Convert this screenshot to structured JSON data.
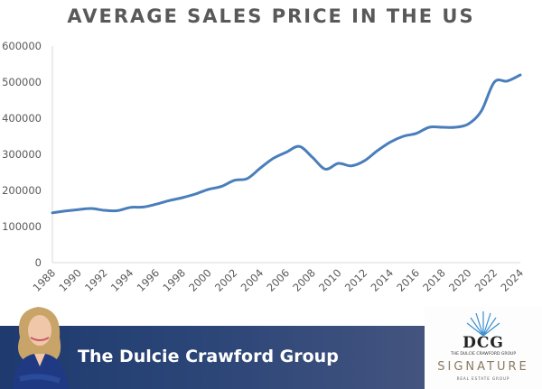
{
  "chart_data": {
    "type": "line",
    "title": "AVERAGE SALES PRICE IN THE US",
    "xlabel": "",
    "ylabel": "",
    "ylim": [
      0,
      600000
    ],
    "yticks": [
      0,
      100000,
      200000,
      300000,
      400000,
      500000,
      600000
    ],
    "ytick_labels": [
      "0",
      "100000",
      "200000",
      "300000",
      "400000",
      "500000",
      "600000"
    ],
    "xlim": [
      1988,
      2024
    ],
    "xtick_labels": [
      "1988",
      "1990",
      "1992",
      "1994",
      "1996",
      "1998",
      "2000",
      "2002",
      "2004",
      "2006",
      "2008",
      "2010",
      "2012",
      "2014",
      "2016",
      "2018",
      "2020",
      "2022",
      "2024"
    ],
    "grid": false,
    "legend": "none",
    "series": [
      {
        "name": "Average Sales Price",
        "color": "#4a7ebb",
        "x": [
          1988,
          1989,
          1990,
          1991,
          1992,
          1993,
          1994,
          1995,
          1996,
          1997,
          1998,
          1999,
          2000,
          2001,
          2002,
          2003,
          2004,
          2005,
          2006,
          2007,
          2008,
          2009,
          2010,
          2011,
          2012,
          2013,
          2014,
          2015,
          2016,
          2017,
          2018,
          2019,
          2020,
          2021,
          2022,
          2023,
          2024
        ],
        "values": [
          138000,
          143000,
          147000,
          150000,
          145000,
          144000,
          153000,
          154000,
          162000,
          172000,
          180000,
          190000,
          203000,
          211000,
          228000,
          233000,
          262000,
          289000,
          306000,
          322000,
          292000,
          259000,
          275000,
          268000,
          282000,
          310000,
          334000,
          350000,
          358000,
          375000,
          375000,
          375000,
          384000,
          420000,
          500000,
          503000,
          520000
        ]
      }
    ]
  },
  "footer": {
    "group_name": "The Dulcie Crawford Group",
    "logo_monogram": "DCG",
    "logo_subtitle": "THE DULCIE CRAWFORD GROUP",
    "logo_brand": "SIGNATURE",
    "logo_tagline": "REAL ESTATE GROUP",
    "band_color": "#1e3a6e"
  }
}
